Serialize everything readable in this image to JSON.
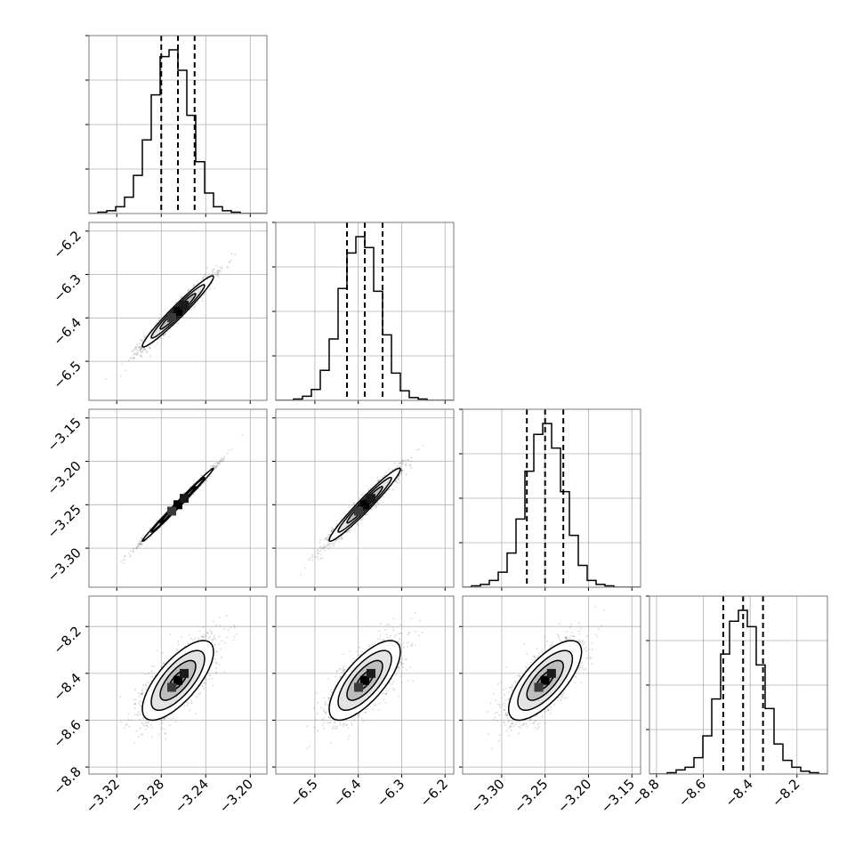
{
  "chart_data": {
    "type": "corner",
    "n_params": 4,
    "grid": true,
    "params": [
      {
        "median": -3.265,
        "sigma": 0.016,
        "range": [
          -3.345,
          -3.185
        ],
        "ticks": [
          -3.32,
          -3.28,
          -3.24,
          -3.2
        ],
        "tick_labels": [
          "−3.32",
          "−3.28",
          "−3.24",
          "−3.20"
        ]
      },
      {
        "median": -6.385,
        "sigma": 0.041,
        "range": [
          -6.59,
          -6.18
        ],
        "ticks": [
          -6.5,
          -6.4,
          -6.3,
          -6.2
        ],
        "tick_labels": [
          "−6.5",
          "−6.4",
          "−6.3",
          "−6.2"
        ]
      },
      {
        "median": -3.25,
        "sigma": 0.021,
        "range": [
          -3.345,
          -3.14
        ],
        "ticks": [
          -3.3,
          -3.25,
          -3.2,
          -3.15
        ],
        "tick_labels": [
          "−3.30",
          "−3.25",
          "−3.20",
          "−3.15"
        ]
      },
      {
        "median": -8.43,
        "sigma": 0.085,
        "range": [
          -8.83,
          -8.07
        ],
        "ticks": [
          -8.8,
          -8.6,
          -8.4,
          -8.2
        ],
        "tick_labels": [
          "−8.8",
          "−8.6",
          "−8.4",
          "−8.2"
        ]
      }
    ],
    "histograms": [
      {
        "param": 0,
        "bin_edges": [
          -3.345,
          -3.337,
          -3.329,
          -3.321,
          -3.313,
          -3.305,
          -3.297,
          -3.289,
          -3.281,
          -3.273,
          -3.265,
          -3.257,
          -3.249,
          -3.241,
          -3.233,
          -3.225,
          -3.217,
          -3.209,
          -3.201,
          -3.193,
          -3.185
        ],
        "counts": [
          0,
          1,
          2,
          5,
          12,
          28,
          54,
          87,
          115,
          120,
          105,
          72,
          38,
          15,
          5,
          2,
          1,
          0,
          0,
          0
        ],
        "quantiles": [
          -3.28,
          -3.265,
          -3.25
        ]
      },
      {
        "param": 1,
        "bin_edges": [
          -6.59,
          -6.5695,
          -6.549,
          -6.5285,
          -6.508,
          -6.4875,
          -6.467,
          -6.4465,
          -6.426,
          -6.4055,
          -6.385,
          -6.3645,
          -6.344,
          -6.3235,
          -6.303,
          -6.2825,
          -6.262,
          -6.2415,
          -6.221,
          -6.2005,
          -6.18
        ],
        "counts": [
          0,
          0,
          1,
          3,
          8,
          22,
          45,
          82,
          108,
          120,
          112,
          80,
          48,
          20,
          7,
          2,
          1,
          0,
          0,
          0
        ],
        "quantiles": [
          -6.426,
          -6.385,
          -6.344
        ]
      },
      {
        "param": 2,
        "bin_edges": [
          -3.345,
          -3.33475,
          -3.3245,
          -3.31425,
          -3.304,
          -3.29375,
          -3.2835,
          -3.27325,
          -3.263,
          -3.25275,
          -3.2425,
          -3.23225,
          -3.222,
          -3.21175,
          -3.2015,
          -3.19125,
          -3.181,
          -3.17075,
          -3.1605,
          -3.15025,
          -3.14
        ],
        "counts": [
          0,
          1,
          2,
          5,
          11,
          25,
          50,
          85,
          112,
          120,
          102,
          70,
          38,
          16,
          5,
          2,
          1,
          0,
          0,
          0
        ],
        "quantiles": [
          -3.271,
          -3.25,
          -3.229
        ]
      },
      {
        "param": 3,
        "bin_edges": [
          -8.83,
          -8.792,
          -8.754,
          -8.716,
          -8.678,
          -8.64,
          -8.602,
          -8.564,
          -8.526,
          -8.488,
          -8.45,
          -8.412,
          -8.374,
          -8.336,
          -8.298,
          -8.26,
          -8.222,
          -8.184,
          -8.146,
          -8.108,
          -8.07
        ],
        "counts": [
          0,
          0,
          1,
          3,
          5,
          12,
          28,
          55,
          88,
          112,
          120,
          108,
          80,
          48,
          22,
          10,
          5,
          2,
          1,
          0
        ],
        "quantiles": [
          -8.515,
          -8.43,
          -8.345
        ]
      }
    ],
    "pairs": [
      {
        "x": 0,
        "y": 1,
        "rho": 0.97
      },
      {
        "x": 0,
        "y": 2,
        "rho": 0.995
      },
      {
        "x": 1,
        "y": 2,
        "rho": 0.97
      },
      {
        "x": 0,
        "y": 3,
        "rho": 0.72
      },
      {
        "x": 1,
        "y": 3,
        "rho": 0.72
      },
      {
        "x": 2,
        "y": 3,
        "rho": 0.72
      }
    ],
    "contour_levels_sigma": [
      0.5,
      1,
      1.5,
      2
    ]
  }
}
